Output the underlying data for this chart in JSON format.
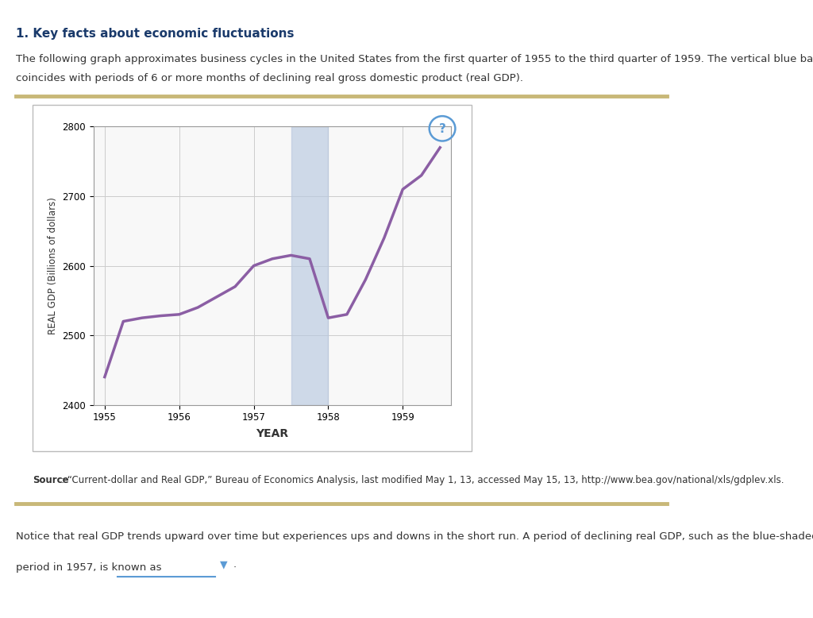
{
  "title": "1. Key facts about economic fluctuations",
  "intro_line1": "The following graph approximates business cycles in the United States from the first quarter of 1955 to the third quarter of 1959. The vertical blue bar",
  "intro_line2": "coincides with periods of 6 or more months of declining real gross domestic product (real GDP).",
  "source_bold": "Source",
  "source_rest": ": “Current-dollar and Real GDP,” Bureau of Economics Analysis, last modified May 1, 13, accessed May 15, 13, http://www.bea.gov/national/xls/gdplev.xls.",
  "bottom_line1": "Notice that real GDP trends upward over time but experiences ups and downs in the short run. A period of declining real GDP, such as the blue-shaded",
  "bottom_line2": "period in 1957, is known as",
  "xlabel": "YEAR",
  "ylabel": "REAL GDP (Billions of dollars)",
  "ylim": [
    2400,
    2800
  ],
  "yticks": [
    2400,
    2500,
    2600,
    2700,
    2800
  ],
  "x_values": [
    1955.0,
    1955.25,
    1955.5,
    1955.75,
    1956.0,
    1956.25,
    1956.5,
    1956.75,
    1957.0,
    1957.25,
    1957.5,
    1957.75,
    1958.0,
    1958.25,
    1958.5,
    1958.75,
    1959.0,
    1959.25,
    1959.5
  ],
  "y_values": [
    2440,
    2520,
    2525,
    2528,
    2530,
    2540,
    2555,
    2570,
    2600,
    2610,
    2615,
    2610,
    2525,
    2530,
    2580,
    2640,
    2710,
    2730,
    2770
  ],
  "line_color": "#8B5EA4",
  "line_width": 2.5,
  "shading_xmin": 1957.5,
  "shading_xmax": 1958.0,
  "shading_color": "#B8C9E0",
  "shading_alpha": 0.65,
  "xticks": [
    1955,
    1956,
    1957,
    1958,
    1959
  ],
  "xlim": [
    1954.85,
    1959.65
  ],
  "grid_color": "#cccccc",
  "chart_bg": "#f8f8f8",
  "outer_bg": "#ffffff",
  "separator_color": "#C8B878",
  "title_color": "#1a3a6b",
  "body_text_color": "#333333",
  "chart_border_color": "#bbbbbb",
  "qmark_color": "#5b9bd5"
}
